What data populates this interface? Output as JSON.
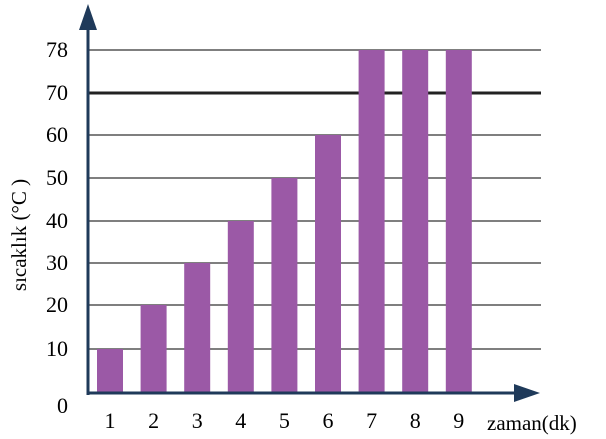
{
  "chart_data": {
    "type": "bar",
    "categories": [
      "1",
      "2",
      "3",
      "4",
      "5",
      "6",
      "7",
      "8",
      "9"
    ],
    "values": [
      10,
      20,
      30,
      40,
      50,
      60,
      78,
      78,
      78
    ],
    "y_ticks": [
      "0",
      "10",
      "20",
      "30",
      "40",
      "50",
      "60",
      "70",
      "78"
    ],
    "xlabel": "zaman(dk)",
    "ylabel": "sıcaklık (°C )",
    "bar_color": "#9b59a6",
    "axis_color": "#1f3a5a",
    "grid": true,
    "highlight_value": 70
  }
}
